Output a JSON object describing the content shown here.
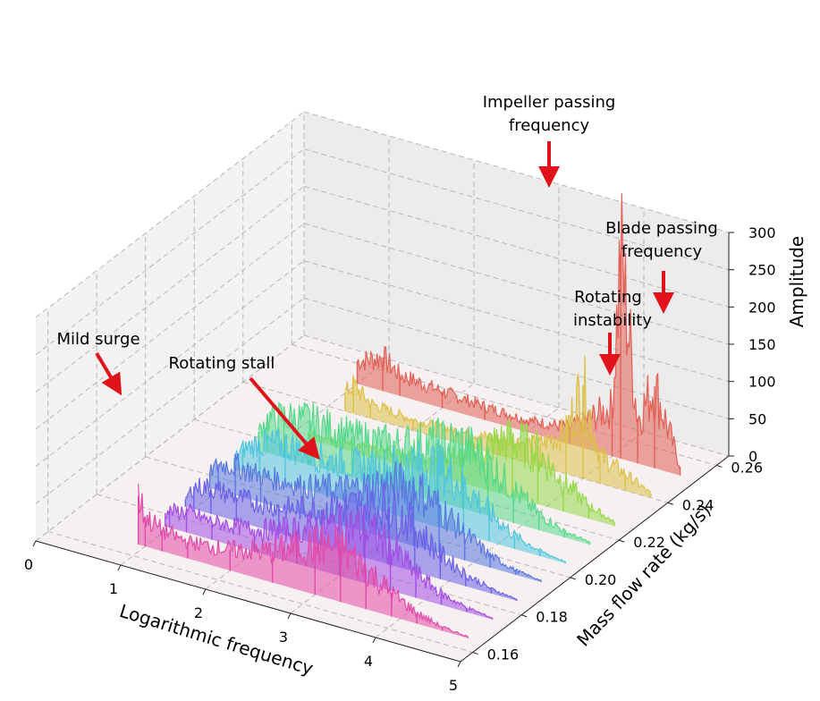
{
  "chart_data": {
    "type": "line",
    "projection": "3d-waterfall",
    "title": "",
    "xlabel": "Logarithmic frequency",
    "ylabel": "Mass flow rate (kg/s)",
    "zlabel": "Amplitude",
    "xlim": [
      0,
      5
    ],
    "ylim": [
      0.155,
      0.265
    ],
    "zlim": [
      0,
      300
    ],
    "x_ticks": [
      "0",
      "1",
      "2",
      "3",
      "4",
      "5"
    ],
    "y_ticks": [
      "0.16",
      "0.18",
      "0.20",
      "0.22",
      "0.24",
      "0.26"
    ],
    "z_ticks": [
      "0",
      "50",
      "100",
      "150",
      "200",
      "250",
      "300"
    ],
    "grid": true,
    "series": [
      {
        "flow": 0.165,
        "color": "#e14aa8",
        "x": [
          0.92,
          1.0,
          1.2,
          1.5,
          2.0,
          2.5,
          3.0,
          3.3,
          3.6,
          3.9,
          4.2,
          4.5,
          4.8
        ],
        "values": [
          65,
          40,
          28,
          22,
          28,
          42,
          66,
          72,
          55,
          32,
          14,
          5,
          2
        ]
      },
      {
        "flow": 0.175,
        "color": "#a34ee3",
        "x": [
          0.95,
          1.0,
          1.2,
          1.5,
          2.0,
          2.5,
          3.0,
          3.3,
          3.6,
          3.9,
          4.2,
          4.5,
          4.8
        ],
        "values": [
          18,
          22,
          28,
          24,
          30,
          45,
          68,
          74,
          58,
          34,
          15,
          6,
          2
        ]
      },
      {
        "flow": 0.185,
        "color": "#6a62e6",
        "x": [
          0.9,
          1.0,
          1.2,
          1.5,
          2.0,
          2.5,
          3.0,
          3.3,
          3.6,
          3.9,
          4.2,
          4.5,
          4.8
        ],
        "values": [
          10,
          30,
          35,
          32,
          34,
          48,
          70,
          78,
          60,
          34,
          16,
          6,
          2
        ]
      },
      {
        "flow": 0.195,
        "color": "#5a78e0",
        "x": [
          0.9,
          1.0,
          1.2,
          1.5,
          2.0,
          2.5,
          3.0,
          3.3,
          3.6,
          3.9,
          4.2,
          4.5,
          4.8
        ],
        "values": [
          20,
          35,
          40,
          36,
          38,
          50,
          72,
          80,
          62,
          36,
          16,
          6,
          2
        ]
      },
      {
        "flow": 0.205,
        "color": "#4fc6dd",
        "x": [
          0.9,
          1.0,
          1.2,
          1.5,
          2.0,
          2.5,
          3.0,
          3.3,
          3.6,
          3.9,
          4.2,
          4.5,
          4.8
        ],
        "values": [
          15,
          30,
          45,
          52,
          48,
          55,
          74,
          82,
          66,
          40,
          18,
          7,
          2
        ]
      },
      {
        "flow": 0.215,
        "color": "#57d98c",
        "x": [
          0.9,
          1.0,
          1.2,
          1.5,
          2.0,
          2.5,
          3.0,
          3.3,
          3.6,
          3.9,
          4.2,
          4.5,
          4.8
        ],
        "values": [
          25,
          45,
          55,
          60,
          55,
          60,
          78,
          86,
          72,
          45,
          22,
          8,
          3
        ]
      },
      {
        "flow": 0.225,
        "color": "#96d84a",
        "x": [
          1.2,
          1.5,
          2.0,
          2.5,
          3.0,
          3.3,
          3.6,
          3.9,
          4.2,
          4.5,
          4.8
        ],
        "values": [
          8,
          10,
          12,
          18,
          35,
          60,
          78,
          70,
          40,
          18,
          5
        ]
      },
      {
        "flow": 0.24,
        "color": "#dcc14a",
        "x": [
          1.2,
          1.3,
          1.5,
          2.0,
          2.5,
          3.0,
          3.5,
          3.8,
          4.0,
          4.2,
          4.5,
          4.8
        ],
        "values": [
          25,
          38,
          20,
          14,
          16,
          20,
          30,
          55,
          125,
          38,
          22,
          6
        ]
      },
      {
        "flow": 0.252,
        "color": "#e26055",
        "x": [
          1.0,
          1.3,
          1.5,
          2.0,
          2.5,
          3.0,
          3.5,
          4.0,
          4.1,
          4.3,
          4.5,
          4.8
        ],
        "values": [
          30,
          45,
          28,
          22,
          18,
          16,
          22,
          65,
          275,
          60,
          110,
          12
        ]
      }
    ],
    "annotations": [
      {
        "text": "Mild surge"
      },
      {
        "text": "Rotating stall"
      },
      {
        "text": "Impeller passing",
        "text2": "frequency"
      },
      {
        "text": "Rotating",
        "text2": "instability"
      },
      {
        "text": "Blade passing",
        "text2": "frequency"
      }
    ]
  }
}
